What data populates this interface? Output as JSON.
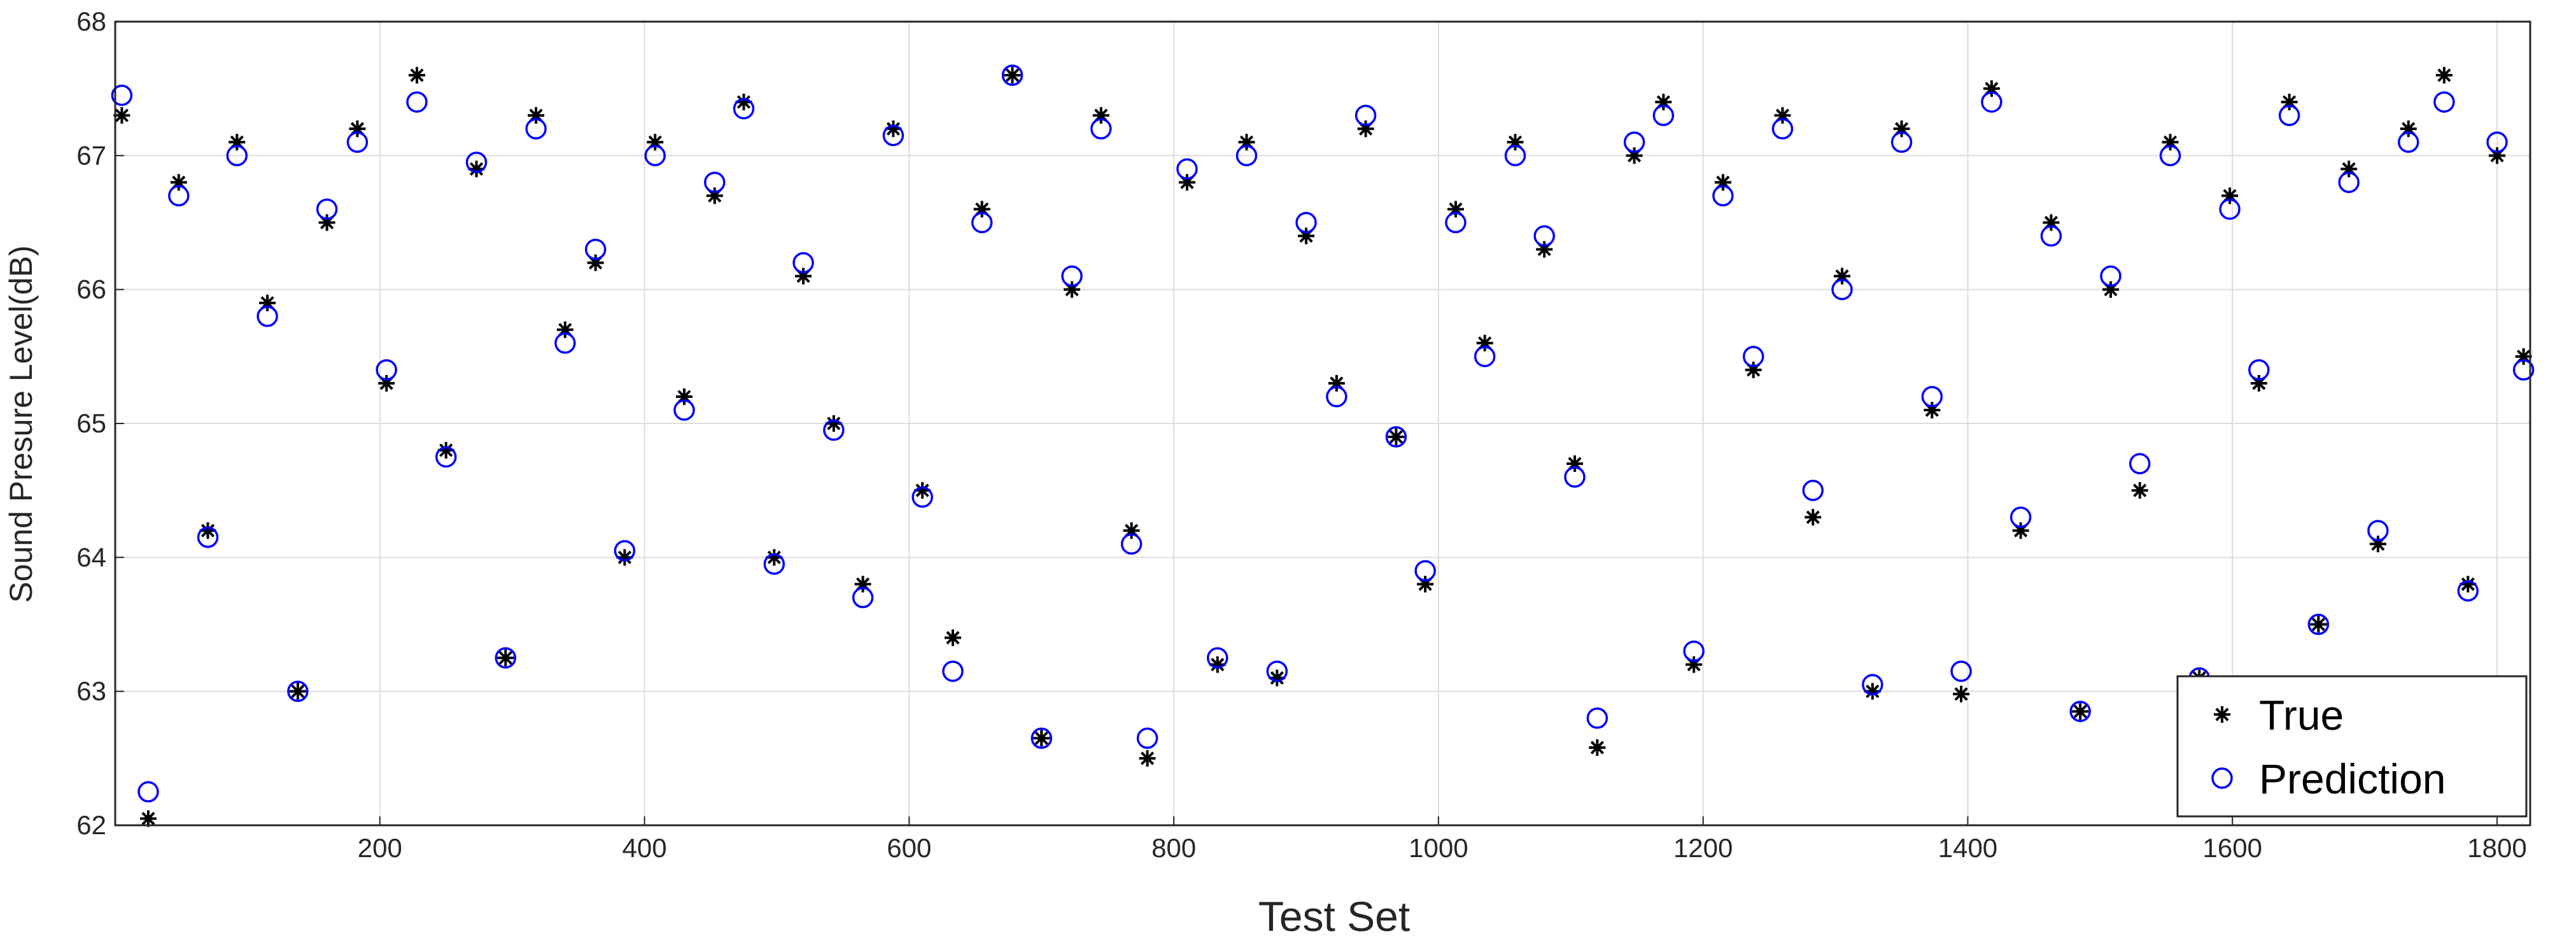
{
  "chart_data": {
    "type": "scatter",
    "xlabel": "Test Set",
    "ylabel": "Sound Presure Level(dB)",
    "x": [
      5,
      25,
      48,
      70,
      92,
      115,
      138,
      160,
      183,
      205,
      228,
      250,
      273,
      295,
      318,
      340,
      363,
      385,
      408,
      430,
      453,
      475,
      498,
      520,
      543,
      565,
      588,
      610,
      633,
      655,
      678,
      700,
      723,
      745,
      768,
      780,
      810,
      833,
      855,
      878,
      900,
      923,
      945,
      968,
      990,
      1013,
      1035,
      1058,
      1080,
      1103,
      1120,
      1148,
      1170,
      1193,
      1215,
      1238,
      1260,
      1283,
      1305,
      1328,
      1350,
      1373,
      1395,
      1418,
      1440,
      1463,
      1485,
      1508,
      1530,
      1553,
      1575,
      1598,
      1620,
      1643,
      1665,
      1688,
      1710,
      1733,
      1760,
      1778,
      1800,
      1820
    ],
    "series": [
      {
        "name": "True",
        "color": "#000000",
        "marker": "asterisk",
        "values": [
          67.3,
          62.05,
          66.8,
          64.2,
          67.1,
          65.9,
          63.0,
          66.5,
          67.2,
          65.3,
          67.6,
          64.8,
          66.9,
          63.25,
          67.3,
          65.7,
          66.2,
          64.0,
          67.1,
          65.2,
          66.7,
          67.4,
          64.0,
          66.1,
          65.0,
          63.8,
          67.2,
          64.5,
          63.4,
          66.6,
          67.6,
          62.65,
          66.0,
          67.3,
          64.2,
          62.5,
          66.8,
          63.2,
          67.1,
          63.1,
          66.4,
          65.3,
          67.2,
          64.9,
          63.8,
          66.6,
          65.6,
          67.1,
          66.3,
          64.7,
          62.58,
          67.0,
          67.4,
          63.2,
          66.8,
          65.4,
          67.3,
          64.3,
          66.1,
          63.0,
          67.2,
          65.1,
          62.98,
          67.5,
          64.2,
          66.5,
          62.85,
          66.0,
          64.5,
          67.1,
          63.1,
          66.7,
          65.3,
          67.4,
          63.5,
          66.9,
          64.1,
          67.2,
          67.6,
          63.8,
          67.0,
          65.5
        ]
      },
      {
        "name": "Prediction",
        "color": "#0000ff",
        "marker": "circle",
        "values": [
          67.45,
          62.25,
          66.7,
          64.15,
          67.0,
          65.8,
          63.0,
          66.6,
          67.1,
          65.4,
          67.4,
          64.75,
          66.95,
          63.25,
          67.2,
          65.6,
          66.3,
          64.05,
          67.0,
          65.1,
          66.8,
          67.35,
          63.95,
          66.2,
          64.95,
          63.7,
          67.15,
          64.45,
          63.15,
          66.5,
          67.6,
          62.65,
          66.1,
          67.2,
          64.1,
          62.65,
          66.9,
          63.25,
          67.0,
          63.15,
          66.5,
          65.2,
          67.3,
          64.9,
          63.9,
          66.5,
          65.5,
          67.0,
          66.4,
          64.6,
          62.8,
          67.1,
          67.3,
          63.3,
          66.7,
          65.5,
          67.2,
          64.5,
          66.0,
          63.05,
          67.1,
          65.2,
          63.15,
          67.4,
          64.3,
          66.4,
          62.85,
          66.1,
          64.7,
          67.0,
          63.1,
          66.6,
          65.4,
          67.3,
          63.5,
          66.8,
          64.2,
          67.1,
          67.4,
          63.75,
          67.1,
          65.4
        ]
      }
    ],
    "xlim": [
      0,
      1825
    ],
    "ylim": [
      62,
      68
    ],
    "xticks": [
      200,
      400,
      600,
      800,
      1000,
      1200,
      1400,
      1600,
      1800
    ],
    "yticks": [
      62,
      63,
      64,
      65,
      66,
      67,
      68
    ],
    "grid": true,
    "legend": "lower right"
  }
}
